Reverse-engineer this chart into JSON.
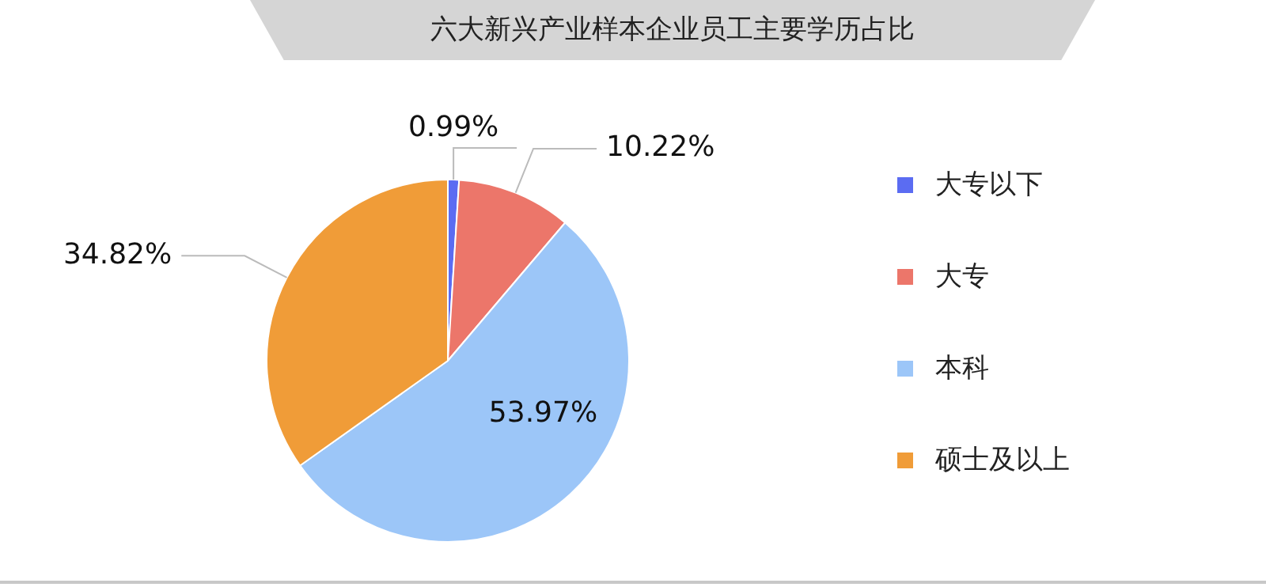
{
  "chart_data": {
    "type": "pie",
    "title": "六大新兴产业样本企业员工主要学历占比",
    "categories": [
      "大专以下",
      "大专",
      "本科",
      "硕士及以上"
    ],
    "values": [
      0.99,
      10.22,
      53.97,
      34.82
    ],
    "colors": [
      "#5b6cf2",
      "#ec766a",
      "#9cc6f8",
      "#f09c38"
    ],
    "value_labels": [
      "0.99%",
      "10.22%",
      "53.97%",
      "34.82%"
    ],
    "legend": "right"
  }
}
